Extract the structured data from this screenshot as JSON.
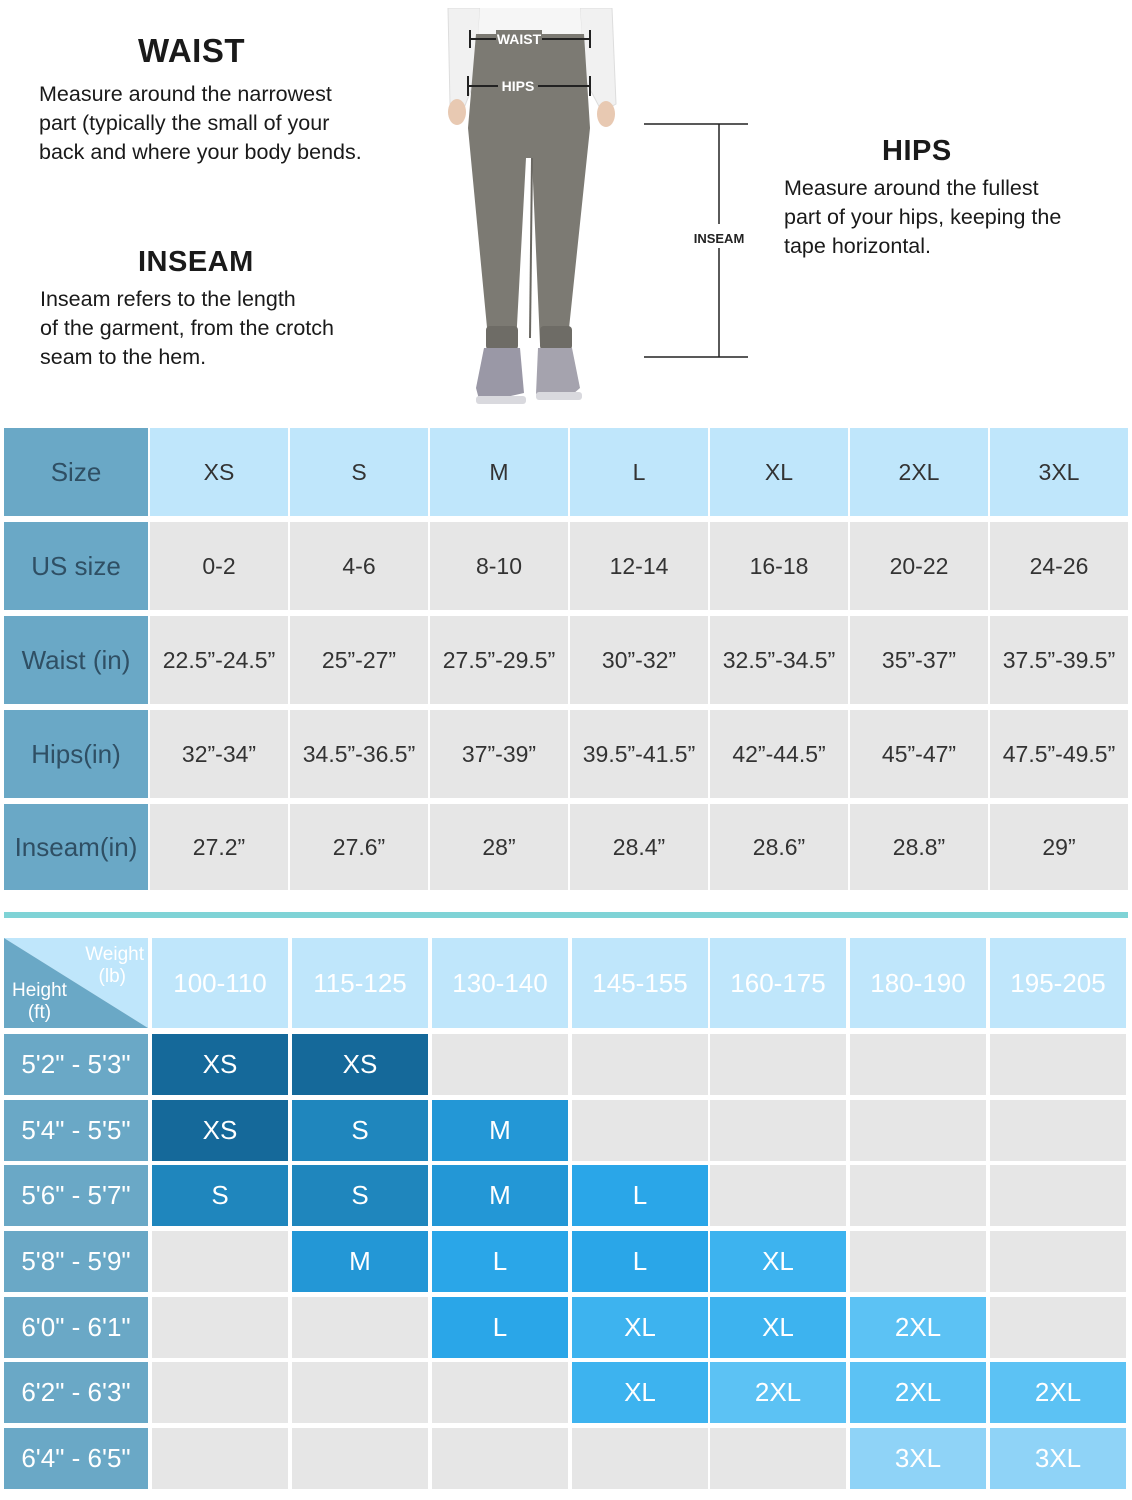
{
  "guide": {
    "waist": {
      "title": "WAIST",
      "lines": [
        "Measure around the narrowest",
        "part (typically the small of your",
        "back and where your body bends."
      ]
    },
    "inseam": {
      "title": "INSEAM",
      "lines": [
        "Inseam refers to the length",
        "of the garment, from the crotch",
        "seam to the hem."
      ]
    },
    "hips": {
      "title": "HIPS",
      "lines": [
        "Measure around the fullest",
        "part of your hips, keeping the",
        "tape horizontal."
      ]
    },
    "figure_labels": {
      "waist": "WAIST",
      "hips": "HIPS",
      "inseam": "INSEAM"
    }
  },
  "size_table": {
    "rows": [
      {
        "label": "Size",
        "values": [
          "XS",
          "S",
          "M",
          "L",
          "XL",
          "2XL",
          "3XL"
        ]
      },
      {
        "label": "US size",
        "values": [
          "0-2",
          "4-6",
          "8-10",
          "12-14",
          "16-18",
          "20-22",
          "24-26"
        ]
      },
      {
        "label": "Waist (in)",
        "values": [
          "22.5”-24.5”",
          "25”-27”",
          "27.5”-29.5”",
          "30”-32”",
          "32.5”-34.5”",
          "35”-37”",
          "37.5”-39.5”"
        ]
      },
      {
        "label": "Hips(in)",
        "values": [
          "32”-34”",
          "34.5”-36.5”",
          "37”-39”",
          "39.5”-41.5”",
          "42”-44.5”",
          "45”-47”",
          "47.5”-49.5”"
        ]
      },
      {
        "label": "Inseam(in)",
        "values": [
          "27.2”",
          "27.6”",
          "28”",
          "28.4”",
          "28.6”",
          "28.8”",
          "29”"
        ]
      }
    ]
  },
  "fit_table": {
    "corner": {
      "weight_label": "Weight",
      "weight_unit": "(lb)",
      "height_label": "Height",
      "height_unit": "(ft)"
    },
    "weights": [
      "100-110",
      "115-125",
      "130-140",
      "145-155",
      "160-175",
      "180-190",
      "195-205"
    ],
    "heights": [
      "5'2\" - 5'3\"",
      "5'4\" - 5'5\"",
      "5'6\" - 5'7\"",
      "5'8\" - 5'9\"",
      "6'0\" - 6'1\"",
      "6'2\" - 6'3\"",
      "6'4\" - 6'5\""
    ],
    "grid": [
      [
        "XS",
        "XS",
        "",
        "",
        "",
        "",
        ""
      ],
      [
        "XS",
        "S",
        "M",
        "",
        "",
        "",
        ""
      ],
      [
        "S",
        "S",
        "M",
        "L",
        "",
        "",
        ""
      ],
      [
        "",
        "M",
        "L",
        "L",
        "XL",
        "",
        ""
      ],
      [
        "",
        "",
        "L",
        "XL",
        "XL",
        "2XL",
        ""
      ],
      [
        "",
        "",
        "",
        "XL",
        "2XL",
        "2XL",
        "2XL"
      ],
      [
        "",
        "",
        "",
        "",
        "",
        "3XL",
        "3XL"
      ]
    ],
    "size_colors": {
      "XS": "#15699a",
      "S": "#1f86bd",
      "M": "#2397d6",
      "L": "#2aa6e8",
      "XL": "#3db3ef",
      "2XL": "#5cc2f4",
      "3XL": "#8fd3f7"
    }
  }
}
